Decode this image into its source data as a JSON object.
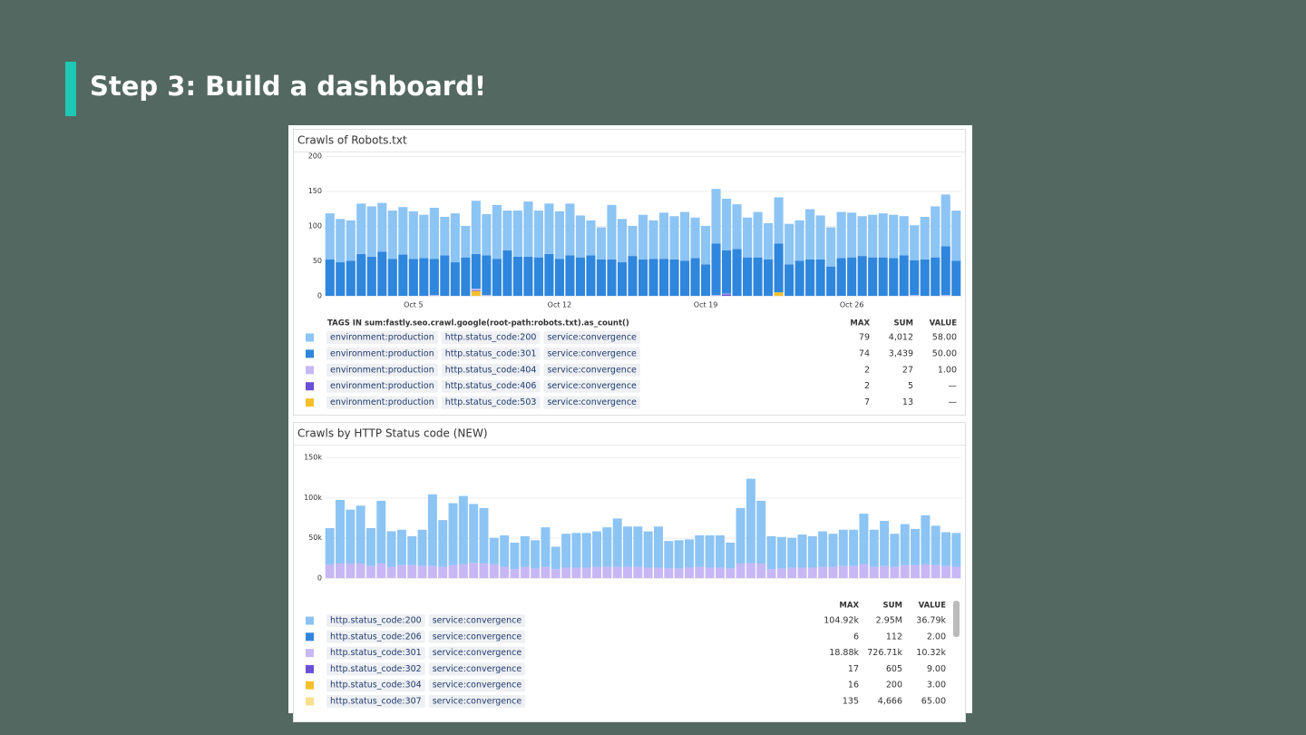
{
  "slide_title": "Step 3: Build a dashboard!",
  "chart_data": [
    {
      "type": "bar",
      "stacked": true,
      "title": "Crawls of Robots.txt",
      "categories": [
        null,
        null,
        null,
        null,
        null,
        null,
        null,
        null,
        "Oct 5",
        null,
        null,
        null,
        null,
        null,
        null,
        null,
        null,
        null,
        null,
        null,
        null,
        null,
        "Oct 12",
        null,
        null,
        null,
        null,
        null,
        null,
        null,
        null,
        null,
        null,
        null,
        null,
        null,
        "Oct 19",
        null,
        null,
        null,
        null,
        null,
        null,
        null,
        null,
        null,
        null,
        null,
        null,
        null,
        "Oct 26",
        null,
        null,
        null,
        null,
        null,
        null,
        null,
        null,
        null,
        null
      ],
      "ylim": [
        0,
        200
      ],
      "yticks": [
        0,
        50,
        100,
        150,
        200
      ],
      "grid": true,
      "series": [
        {
          "color": "#8cc4f4",
          "values": [
            66,
            62,
            58,
            72,
            72,
            70,
            69,
            68,
            68,
            62,
            73,
            55,
            70,
            45,
            76,
            59,
            77,
            57,
            66,
            79,
            67,
            72,
            68,
            74,
            60,
            50,
            46,
            78,
            62,
            43,
            64,
            55,
            66,
            62,
            70,
            58,
            55,
            78,
            74,
            64,
            57,
            65,
            52,
            66,
            58,
            58,
            72,
            63,
            56,
            66,
            64,
            57,
            61,
            63,
            62,
            56,
            50,
            61,
            73,
            74,
            72
          ]
        },
        {
          "color": "#2f86dd",
          "values": [
            52,
            48,
            50,
            60,
            56,
            63,
            53,
            59,
            53,
            54,
            52,
            58,
            48,
            55,
            50,
            57,
            53,
            65,
            56,
            56,
            55,
            60,
            53,
            58,
            55,
            58,
            52,
            52,
            48,
            57,
            52,
            53,
            53,
            52,
            50,
            54,
            45,
            74,
            62,
            67,
            55,
            55,
            52,
            70,
            45,
            50,
            52,
            52,
            42,
            54,
            55,
            57,
            55,
            55,
            54,
            58,
            50,
            52,
            55,
            70,
            50
          ]
        },
        {
          "color": "#c7b8f5",
          "values": [
            0,
            0,
            0,
            0,
            0,
            0,
            0,
            0,
            0,
            0,
            1,
            0,
            0,
            0,
            2,
            1,
            0,
            0,
            0,
            0,
            0,
            0,
            0,
            0,
            0,
            0,
            0,
            0,
            0,
            0,
            0,
            0,
            0,
            0,
            0,
            0,
            0,
            1,
            1,
            0,
            0,
            0,
            0,
            0,
            0,
            0,
            0,
            0,
            0,
            0,
            0,
            0,
            0,
            0,
            0,
            0,
            1,
            0,
            0,
            1,
            0
          ]
        },
        {
          "color": "#6a4fd8",
          "values": [
            0,
            0,
            0,
            0,
            0,
            0,
            0,
            0,
            0,
            0,
            0,
            0,
            0,
            0,
            1,
            0,
            0,
            0,
            0,
            0,
            0,
            0,
            0,
            0,
            0,
            0,
            0,
            0,
            0,
            0,
            0,
            0,
            0,
            0,
            0,
            0,
            0,
            0,
            2,
            0,
            0,
            0,
            0,
            0,
            0,
            0,
            0,
            0,
            0,
            0,
            0,
            0,
            0,
            0,
            0,
            0,
            0,
            0,
            0,
            0,
            0
          ]
        },
        {
          "color": "#f5c02d",
          "values": [
            0,
            0,
            0,
            0,
            0,
            0,
            0,
            0,
            0,
            0,
            0,
            0,
            0,
            0,
            7,
            0,
            0,
            0,
            0,
            0,
            0,
            0,
            0,
            0,
            0,
            0,
            0,
            0,
            0,
            0,
            0,
            0,
            0,
            0,
            0,
            0,
            0,
            0,
            0,
            0,
            0,
            0,
            0,
            5,
            0,
            0,
            0,
            0,
            0,
            0,
            0,
            0,
            0,
            0,
            0,
            0,
            0,
            0,
            0,
            0,
            0
          ]
        }
      ],
      "legend_table": {
        "columns": [
          "TAGS IN sum:fastly.seo.crawl.google(root-path:robots.txt).as_count()",
          "MAX",
          "SUM",
          "VALUE"
        ],
        "rows": [
          {
            "tags": [
              "environment:production",
              "http.status_code:200",
              "service:convergence"
            ],
            "max": "79",
            "sum": "4,012",
            "value": "58.00"
          },
          {
            "tags": [
              "environment:production",
              "http.status_code:301",
              "service:convergence"
            ],
            "max": "74",
            "sum": "3,439",
            "value": "50.00"
          },
          {
            "tags": [
              "environment:production",
              "http.status_code:404",
              "service:convergence"
            ],
            "max": "2",
            "sum": "27",
            "value": "1.00"
          },
          {
            "tags": [
              "environment:production",
              "http.status_code:406",
              "service:convergence"
            ],
            "max": "2",
            "sum": "5",
            "value": "—"
          },
          {
            "tags": [
              "environment:production",
              "http.status_code:503",
              "service:convergence"
            ],
            "max": "7",
            "sum": "13",
            "value": "—"
          }
        ]
      }
    },
    {
      "type": "bar",
      "stacked": true,
      "title": "Crawls by HTTP Status code (NEW)",
      "ylim": [
        0,
        150000
      ],
      "yticks": [
        0,
        {
          "value": 50000,
          "label": "50k"
        },
        {
          "value": 100000,
          "label": "100k"
        },
        {
          "value": 150000,
          "label": "150k"
        }
      ],
      "grid": true,
      "series": [
        {
          "color": "#8cc4f4",
          "values": [
            45000,
            79000,
            67000,
            72000,
            47000,
            78000,
            44000,
            44000,
            36000,
            45000,
            89000,
            58000,
            77000,
            85000,
            73200,
            69000,
            33000,
            39000,
            33000,
            38000,
            35000,
            49000,
            28000,
            42000,
            43000,
            43000,
            44000,
            49000,
            60000,
            50000,
            50000,
            45000,
            51000,
            34000,
            35000,
            35000,
            39000,
            40000,
            40000,
            32000,
            69000,
            104920,
            78000,
            41000,
            39000,
            37000,
            41000,
            39000,
            44000,
            41000,
            45000,
            45000,
            63000,
            46000,
            56000,
            41000,
            51000,
            45000,
            61000,
            49000,
            42000,
            42000
          ]
        },
        {
          "color": "#2f86dd",
          "values": [
            0,
            0,
            0,
            0,
            0,
            0,
            0,
            6,
            0,
            0,
            0,
            0,
            0,
            0,
            0,
            0,
            0,
            0,
            0,
            0,
            0,
            0,
            0,
            0,
            0,
            0,
            0,
            0,
            0,
            0,
            0,
            0,
            0,
            0,
            0,
            0,
            0,
            0,
            0,
            0,
            0,
            0,
            0,
            0,
            0,
            0,
            0,
            0,
            0,
            0,
            0,
            0,
            0,
            0,
            0,
            0,
            0,
            0,
            0,
            0,
            0,
            0
          ]
        },
        {
          "color": "#c7b8f5",
          "values": [
            17000,
            18000,
            18000,
            18000,
            15000,
            18000,
            14000,
            16000,
            16000,
            15000,
            15000,
            14000,
            16000,
            17000,
            18800,
            18000,
            17000,
            14000,
            11000,
            14000,
            12000,
            14000,
            11000,
            13000,
            13000,
            13000,
            14000,
            14000,
            14000,
            14000,
            14000,
            13000,
            13000,
            12000,
            12000,
            13000,
            14000,
            13000,
            13000,
            12000,
            18000,
            18500,
            18000,
            11000,
            12000,
            13000,
            13000,
            13000,
            14000,
            14000,
            15000,
            15000,
            17000,
            14000,
            15000,
            14000,
            16000,
            16000,
            17000,
            16000,
            15000,
            14000
          ]
        },
        {
          "color": "#6a4fd8",
          "values": [
            0,
            0,
            0,
            0,
            0,
            0,
            0,
            0,
            0,
            0,
            0,
            0,
            0,
            0,
            0,
            0,
            0,
            17,
            0,
            0,
            0,
            0,
            0,
            0,
            0,
            0,
            0,
            0,
            0,
            0,
            0,
            0,
            0,
            0,
            0,
            0,
            0,
            0,
            0,
            0,
            0,
            0,
            0,
            0,
            0,
            0,
            0,
            0,
            0,
            0,
            0,
            0,
            0,
            0,
            0,
            0,
            0,
            0,
            0,
            0,
            0,
            0
          ]
        },
        {
          "color": "#f5c02d",
          "values": [
            0,
            0,
            0,
            0,
            0,
            0,
            16,
            0,
            0,
            0,
            0,
            0,
            0,
            0,
            0,
            0,
            0,
            0,
            0,
            0,
            0,
            0,
            0,
            0,
            0,
            0,
            0,
            0,
            0,
            0,
            0,
            0,
            0,
            0,
            0,
            0,
            0,
            0,
            0,
            0,
            0,
            0,
            0,
            0,
            0,
            0,
            0,
            0,
            0,
            0,
            0,
            0,
            0,
            0,
            0,
            0,
            0,
            0,
            0,
            0,
            0,
            0
          ]
        },
        {
          "color": "#f7e08e",
          "values": [
            0,
            0,
            0,
            0,
            0,
            0,
            135,
            0,
            0,
            0,
            0,
            0,
            0,
            0,
            0,
            0,
            0,
            0,
            0,
            0,
            0,
            0,
            0,
            0,
            0,
            0,
            0,
            0,
            0,
            0,
            0,
            0,
            0,
            0,
            0,
            0,
            0,
            0,
            0,
            0,
            0,
            0,
            0,
            0,
            0,
            0,
            0,
            0,
            0,
            0,
            0,
            0,
            0,
            0,
            0,
            0,
            0,
            0,
            0,
            0,
            0,
            0
          ]
        }
      ],
      "legend_table": {
        "columns": [
          "MAX",
          "SUM",
          "VALUE"
        ],
        "rows": [
          {
            "tags": [
              "http.status_code:200",
              "service:convergence"
            ],
            "max": "104.92k",
            "sum": "2.95M",
            "value": "36.79k"
          },
          {
            "tags": [
              "http.status_code:206",
              "service:convergence"
            ],
            "max": "6",
            "sum": "112",
            "value": "2.00"
          },
          {
            "tags": [
              "http.status_code:301",
              "service:convergence"
            ],
            "max": "18.88k",
            "sum": "726.71k",
            "value": "10.32k"
          },
          {
            "tags": [
              "http.status_code:302",
              "service:convergence"
            ],
            "max": "17",
            "sum": "605",
            "value": "9.00"
          },
          {
            "tags": [
              "http.status_code:304",
              "service:convergence"
            ],
            "max": "16",
            "sum": "200",
            "value": "3.00"
          },
          {
            "tags": [
              "http.status_code:307",
              "service:convergence"
            ],
            "max": "135",
            "sum": "4,666",
            "value": "65.00"
          }
        ]
      }
    }
  ]
}
